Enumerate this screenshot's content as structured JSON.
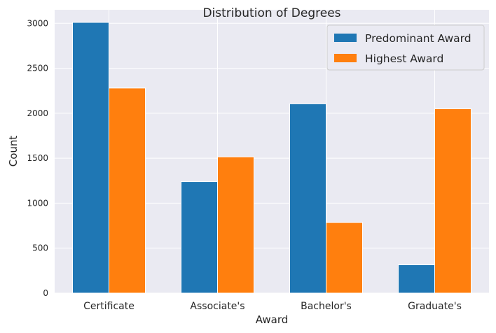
{
  "chart_data": {
    "type": "bar",
    "title": "Distribution of Degrees",
    "xlabel": "Award",
    "ylabel": "Count",
    "categories": [
      "Certificate",
      "Associate's",
      "Bachelor's",
      "Graduate's"
    ],
    "series": [
      {
        "name": "Predominant Award",
        "values": [
          3010,
          1240,
          2105,
          315
        ],
        "color": "#1f77b4"
      },
      {
        "name": "Highest Award",
        "values": [
          2280,
          1515,
          785,
          2050
        ],
        "color": "#ff7f0e"
      }
    ],
    "ylim": [
      0,
      3150
    ],
    "yticks": [
      0,
      500,
      1000,
      1500,
      2000,
      2500,
      3000
    ],
    "grid": true,
    "legend_position": "top-right",
    "background": "#eaeaf2"
  }
}
